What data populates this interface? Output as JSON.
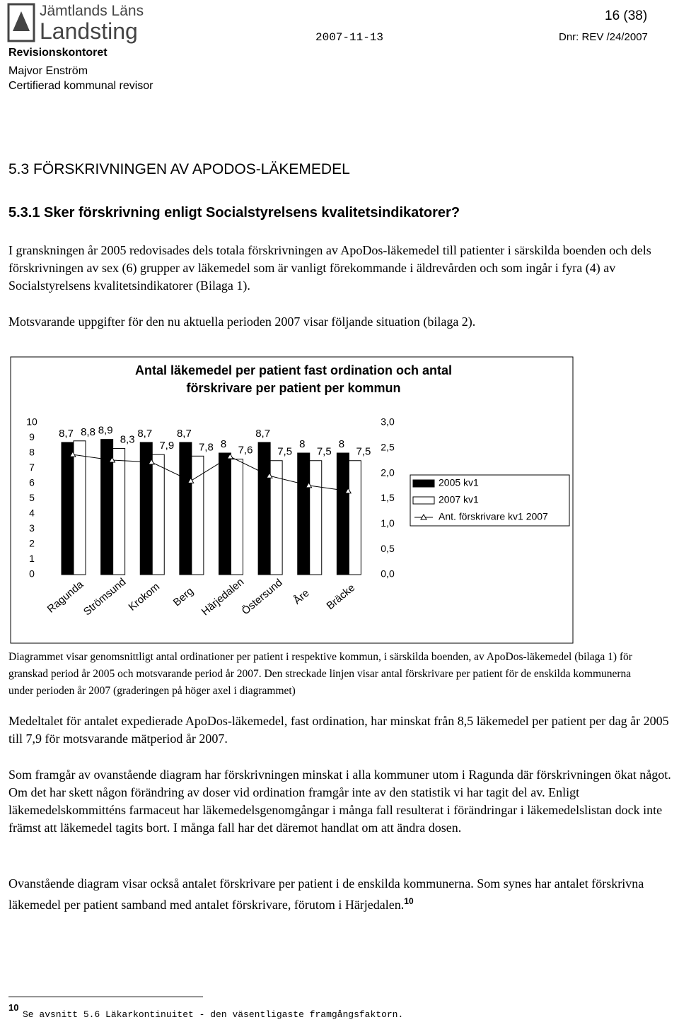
{
  "header": {
    "logo_line1": "Jämtlands Läns",
    "logo_line2": "Landsting",
    "page": "16 (38)",
    "date": "2007-11-13",
    "dnr": "Dnr: REV /24/2007",
    "unit": "Revisionskontoret",
    "name": "Majvor Enström",
    "role": "Certifierad kommunal revisor"
  },
  "headings": [
    "5.3 FÖRSKRIVNINGEN AV APODOS-LÄKEMEDEL",
    "5.3.1 Sker förskrivning enligt Socialstyrelsens kvalitetsindikatorer?"
  ],
  "paragraphs_before": [
    "I granskningen år 2005 redovisades dels totala förskrivningen av ApoDos-läkemedel till patienter i särskilda boenden och dels förskrivningen av sex (6) grupper av läkemedel som är vanligt förekommande i äldrevården och som ingår i fyra (4) av Socialstyrelsens kvalitetsindikatorer (Bilaga 1).",
    "Motsvarande uppgifter för den nu aktuella perioden 2007 visar följande situation (bilaga 2)."
  ],
  "chart_data": {
    "type": "bar",
    "title": "Antal läkemedel per patient fast ordination och antal förskrivare per patient per kommun",
    "categories": [
      "Ragunda",
      "Strömsund",
      "Krokom",
      "Berg",
      "Härjedalen",
      "Östersund",
      "Åre",
      "Bräcke"
    ],
    "series": [
      {
        "name": "2005 kv1",
        "color": "#000000",
        "values": [
          8.7,
          8.9,
          8.7,
          8.7,
          8,
          8.7,
          8,
          8
        ],
        "value_labels": [
          "8,7",
          "8,9",
          "8,7",
          "8,7",
          "8",
          "8,7",
          "8",
          "8"
        ]
      },
      {
        "name": "2007 kv1",
        "color": "#ffffff",
        "values": [
          8.8,
          8.3,
          7.9,
          7.8,
          7.6,
          7.5,
          7.5,
          7.5
        ],
        "value_labels": [
          "8,8",
          "8,3",
          "7,9",
          "7,8",
          "7,6",
          "7,5",
          "7,5",
          "7,5"
        ]
      },
      {
        "name": "Ant. förskrivare kv1 2007",
        "color": "#000000",
        "type": "line",
        "axis": "y2",
        "values": [
          2.37,
          2.26,
          2.22,
          1.85,
          2.33,
          1.95,
          1.76,
          1.65
        ]
      }
    ],
    "ylim": [
      0,
      10
    ],
    "yticks": [
      0,
      1,
      2,
      3,
      4,
      5,
      6,
      7,
      8,
      9,
      10
    ],
    "y2lim": [
      0,
      3
    ],
    "y2ticks": [
      {
        "value": 0,
        "label": "0,0"
      },
      {
        "value": 0.5,
        "label": "0,5"
      },
      {
        "value": 1,
        "label": "1,0"
      },
      {
        "value": 1.5,
        "label": "1,5"
      },
      {
        "value": 2,
        "label": "2,0"
      },
      {
        "value": 2.5,
        "label": "2,5"
      },
      {
        "value": 3,
        "label": "3,0"
      }
    ],
    "legend": "right",
    "grid": false
  },
  "caption": "Diagrammet visar genomsnittligt antal ordinationer per patient i respektive kommun, i särskilda boenden, av ApoDos-läkemedel (bilaga 1) för granskad period år 2005 och motsvarande period år 2007. Den streckade linjen visar antal förskrivare per patient för de enskilda kommunerna under perioden år 2007 (graderingen på höger axel i diagrammet)",
  "paragraphs_after": [
    "Medeltalet för antalet expedierade ApoDos-läkemedel, fast ordination, har minskat från 8,5 läkemedel per patient per dag år 2005 till 7,9 för motsvarande mätperiod år 2007.",
    "Som framgår av ovanstående diagram har förskrivningen minskat i alla kommuner utom i Ragunda där förskrivningen ökat något. Om det har skett någon förändring av doser vid ordination framgår inte av den statistik vi har tagit del av. Enligt läkemedelskommitténs farmaceut har läkemedelsgenomgångar i många fall resulterat i förändringar i läkemedelslistan dock inte främst att läkemedel tagits bort. I många fall har det däremot handlat om att ändra dosen.",
    "Ovanstående diagram visar också antalet förskrivare per patient i de enskilda kommunerna. Som synes har antalet förskrivna läkemedel per patient samband med antalet förskrivare, förutom i Härjedalen."
  ],
  "footnote": {
    "number": "10",
    "text": "Se avsnitt 5.6 Läkarkontinuitet - den väsentligaste framgångsfaktorn."
  }
}
